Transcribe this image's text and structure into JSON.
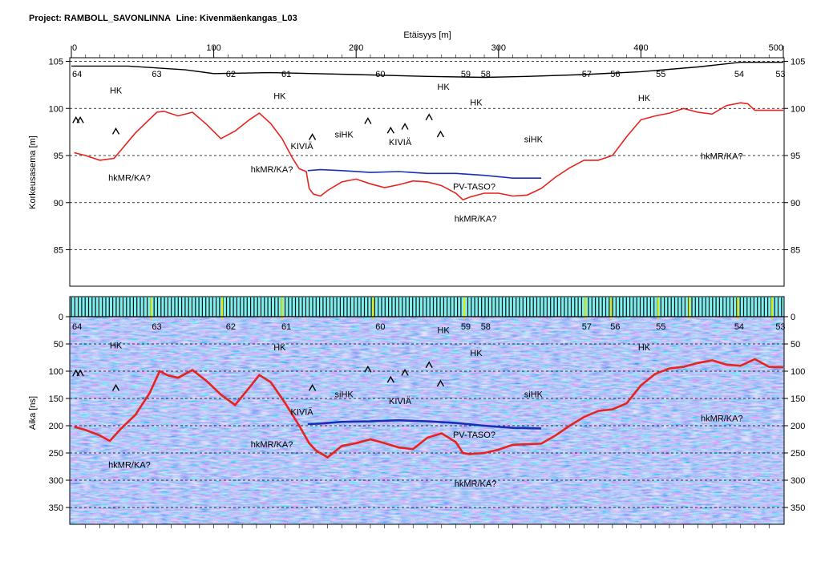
{
  "header": {
    "project_label": "Project:",
    "project": "RAMBOLL_SAVONLINNA",
    "line_label": "Line:",
    "line": "Kivenmäenkangas_L03"
  },
  "chart_data": [
    {
      "type": "line",
      "xlabel": "Etäisyys [m]",
      "ylabel": "Korkeusasema [m]",
      "xlim": [
        0,
        500
      ],
      "ylim": [
        81,
        106
      ],
      "x_ticks": [
        0,
        100,
        200,
        300,
        400,
        500
      ],
      "y_ticks": [
        85,
        90,
        95,
        100,
        105
      ],
      "grid": "dashed horizontal",
      "series": [
        {
          "role": "ground surface",
          "color": "#000000",
          "x": [
            0,
            40,
            80,
            100,
            140,
            200,
            250,
            290,
            320,
            360,
            400,
            440,
            470,
            500
          ],
          "values": [
            104.5,
            104.5,
            104.1,
            103.7,
            103.8,
            103.6,
            103.4,
            103.3,
            103.4,
            103.6,
            103.9,
            104.4,
            104.9,
            104.9
          ]
        },
        {
          "role": "interpreted interface (red)",
          "color": "#e8221d",
          "x": [
            2,
            10,
            20,
            30,
            45,
            60,
            65,
            75,
            85,
            95,
            105,
            115,
            125,
            132,
            140,
            148,
            155,
            160,
            165,
            167,
            170,
            175,
            180,
            190,
            200,
            210,
            220,
            230,
            240,
            250,
            260,
            270,
            275,
            280,
            290,
            300,
            310,
            320,
            330,
            340,
            350,
            360,
            370,
            380,
            390,
            400,
            410,
            420,
            430,
            440,
            450,
            460,
            470,
            475,
            480,
            490,
            500
          ],
          "values": [
            95.3,
            95.0,
            94.5,
            94.7,
            97.4,
            99.6,
            99.7,
            99.2,
            99.6,
            98.3,
            96.8,
            97.6,
            98.8,
            99.5,
            98.4,
            96.8,
            94.8,
            93.6,
            93.3,
            91.5,
            90.9,
            90.7,
            91.3,
            92.2,
            92.5,
            92.0,
            91.6,
            91.9,
            92.3,
            92.2,
            91.8,
            91.0,
            90.3,
            90.6,
            91.0,
            91.0,
            90.7,
            90.8,
            91.5,
            92.7,
            93.7,
            94.5,
            94.5,
            95.0,
            97.0,
            98.8,
            99.2,
            99.5,
            100.0,
            99.6,
            99.4,
            100.3,
            100.6,
            100.5,
            99.8,
            99.8,
            99.8
          ]
        },
        {
          "role": "PV-TASO? (groundwater level)",
          "color": "#1a2fb8",
          "x": [
            166,
            175,
            190,
            210,
            230,
            250,
            270,
            290,
            310,
            330
          ],
          "values": [
            93.4,
            93.5,
            93.4,
            93.2,
            93.3,
            93.1,
            93.1,
            92.9,
            92.6,
            92.6
          ]
        }
      ],
      "station_labels": [
        {
          "x": 4,
          "text": "64"
        },
        {
          "x": 60,
          "text": "63"
        },
        {
          "x": 112,
          "text": "62"
        },
        {
          "x": 151,
          "text": "61"
        },
        {
          "x": 217,
          "text": "60"
        },
        {
          "x": 277,
          "text": "59"
        },
        {
          "x": 291,
          "text": "58"
        },
        {
          "x": 362,
          "text": "57"
        },
        {
          "x": 382,
          "text": "56"
        },
        {
          "x": 414,
          "text": "55"
        },
        {
          "x": 469,
          "text": "54"
        },
        {
          "x": 498,
          "text": "53"
        }
      ],
      "annotations": [
        {
          "x": 27,
          "y": 101.6,
          "text": "HK"
        },
        {
          "x": 142,
          "y": 101.0,
          "text": "HK"
        },
        {
          "x": 257,
          "y": 102.0,
          "text": "HK"
        },
        {
          "x": 280,
          "y": 100.3,
          "text": "HK"
        },
        {
          "x": 398,
          "y": 100.8,
          "text": "HK"
        },
        {
          "x": 185,
          "y": 96.9,
          "text": "siHK"
        },
        {
          "x": 318,
          "y": 96.4,
          "text": "siHK"
        },
        {
          "x": 154,
          "y": 95.7,
          "text": "KIVIÄ"
        },
        {
          "x": 223,
          "y": 96.1,
          "text": "KIVIÄ"
        },
        {
          "x": 126,
          "y": 93.2,
          "text": "hkMR/KA?"
        },
        {
          "x": 26,
          "y": 92.3,
          "text": "hkMR/KA?"
        },
        {
          "x": 268,
          "y": 91.4,
          "text": "PV-TASO?"
        },
        {
          "x": 269,
          "y": 88.0,
          "text": "hkMR/KA?"
        },
        {
          "x": 442,
          "y": 94.6,
          "text": "hkMR/KA?"
        }
      ],
      "boulder_marks": [
        {
          "x": 1,
          "y": 98.8
        },
        {
          "x": 4,
          "y": 98.8
        },
        {
          "x": 29,
          "y": 97.6
        },
        {
          "x": 167,
          "y": 97.0
        },
        {
          "x": 206,
          "y": 98.7
        },
        {
          "x": 222,
          "y": 97.7
        },
        {
          "x": 232,
          "y": 98.1
        },
        {
          "x": 249,
          "y": 99.1
        },
        {
          "x": 257,
          "y": 97.3
        }
      ]
    },
    {
      "type": "heatmap",
      "ylabel": "Aika [ns]",
      "xlim": [
        0,
        500
      ],
      "ylim": [
        385,
        -40
      ],
      "y_ticks": [
        0,
        50,
        100,
        150,
        200,
        250,
        300,
        350
      ],
      "grid": "dashed horizontal",
      "series": [
        {
          "role": "interpreted interface (red)",
          "color": "#e8221d",
          "x": [
            2,
            10,
            20,
            27,
            35,
            45,
            55,
            62,
            68,
            75,
            85,
            95,
            105,
            115,
            125,
            132,
            140,
            150,
            160,
            167,
            172,
            180,
            190,
            200,
            210,
            220,
            230,
            240,
            250,
            260,
            270,
            275,
            280,
            290,
            300,
            310,
            320,
            330,
            340,
            350,
            360,
            370,
            380,
            390,
            400,
            410,
            420,
            430,
            440,
            450,
            460,
            470,
            480,
            490,
            500
          ],
          "values": [
            202,
            208,
            218,
            228,
            205,
            180,
            140,
            100,
            108,
            112,
            98,
            118,
            143,
            162,
            130,
            107,
            120,
            158,
            200,
            232,
            246,
            258,
            237,
            232,
            225,
            232,
            240,
            243,
            222,
            214,
            230,
            250,
            252,
            250,
            244,
            235,
            234,
            233,
            218,
            200,
            184,
            173,
            170,
            159,
            126,
            105,
            95,
            92,
            85,
            80,
            88,
            90,
            78,
            92,
            93
          ]
        },
        {
          "role": "PV-TASO?",
          "color": "#1a2fb8",
          "x": [
            166,
            175,
            190,
            210,
            230,
            250,
            270,
            290,
            310,
            330
          ],
          "values": [
            197,
            196,
            193,
            192,
            190,
            192,
            195,
            200,
            204,
            205
          ]
        }
      ],
      "station_labels": [
        {
          "x": 4,
          "text": "64"
        },
        {
          "x": 60,
          "text": "63"
        },
        {
          "x": 112,
          "text": "62"
        },
        {
          "x": 151,
          "text": "61"
        },
        {
          "x": 217,
          "text": "60"
        },
        {
          "x": 277,
          "text": "59"
        },
        {
          "x": 291,
          "text": "58"
        },
        {
          "x": 362,
          "text": "57"
        },
        {
          "x": 382,
          "text": "56"
        },
        {
          "x": 414,
          "text": "55"
        },
        {
          "x": 469,
          "text": "54"
        },
        {
          "x": 498,
          "text": "53"
        }
      ],
      "annotations": [
        {
          "x": 27,
          "y": 58,
          "text": "HK"
        },
        {
          "x": 142,
          "y": 62,
          "text": "HK"
        },
        {
          "x": 257,
          "y": 30,
          "text": "HK"
        },
        {
          "x": 280,
          "y": 72,
          "text": "HK"
        },
        {
          "x": 398,
          "y": 62,
          "text": "HK"
        },
        {
          "x": 185,
          "y": 148,
          "text": "siHK"
        },
        {
          "x": 318,
          "y": 148,
          "text": "siHK"
        },
        {
          "x": 154,
          "y": 180,
          "text": "KIVIÄ"
        },
        {
          "x": 223,
          "y": 160,
          "text": "KIVIÄ"
        },
        {
          "x": 126,
          "y": 240,
          "text": "hkMR/KA?"
        },
        {
          "x": 26,
          "y": 277,
          "text": "hkMR/KA?"
        },
        {
          "x": 268,
          "y": 222,
          "text": "PV-TASO?"
        },
        {
          "x": 269,
          "y": 312,
          "text": "hkMR/KA?"
        },
        {
          "x": 442,
          "y": 192,
          "text": "hkMR/KA?"
        }
      ],
      "boulder_marks": [
        {
          "x": 1,
          "y": 103
        },
        {
          "x": 4,
          "y": 103
        },
        {
          "x": 29,
          "y": 130
        },
        {
          "x": 167,
          "y": 130
        },
        {
          "x": 206,
          "y": 96
        },
        {
          "x": 222,
          "y": 115
        },
        {
          "x": 232,
          "y": 102
        },
        {
          "x": 249,
          "y": 88
        },
        {
          "x": 257,
          "y": 122
        }
      ],
      "marker_x": [
        56,
        106,
        148,
        212,
        276,
        361,
        379,
        412,
        434,
        468,
        492
      ]
    }
  ]
}
